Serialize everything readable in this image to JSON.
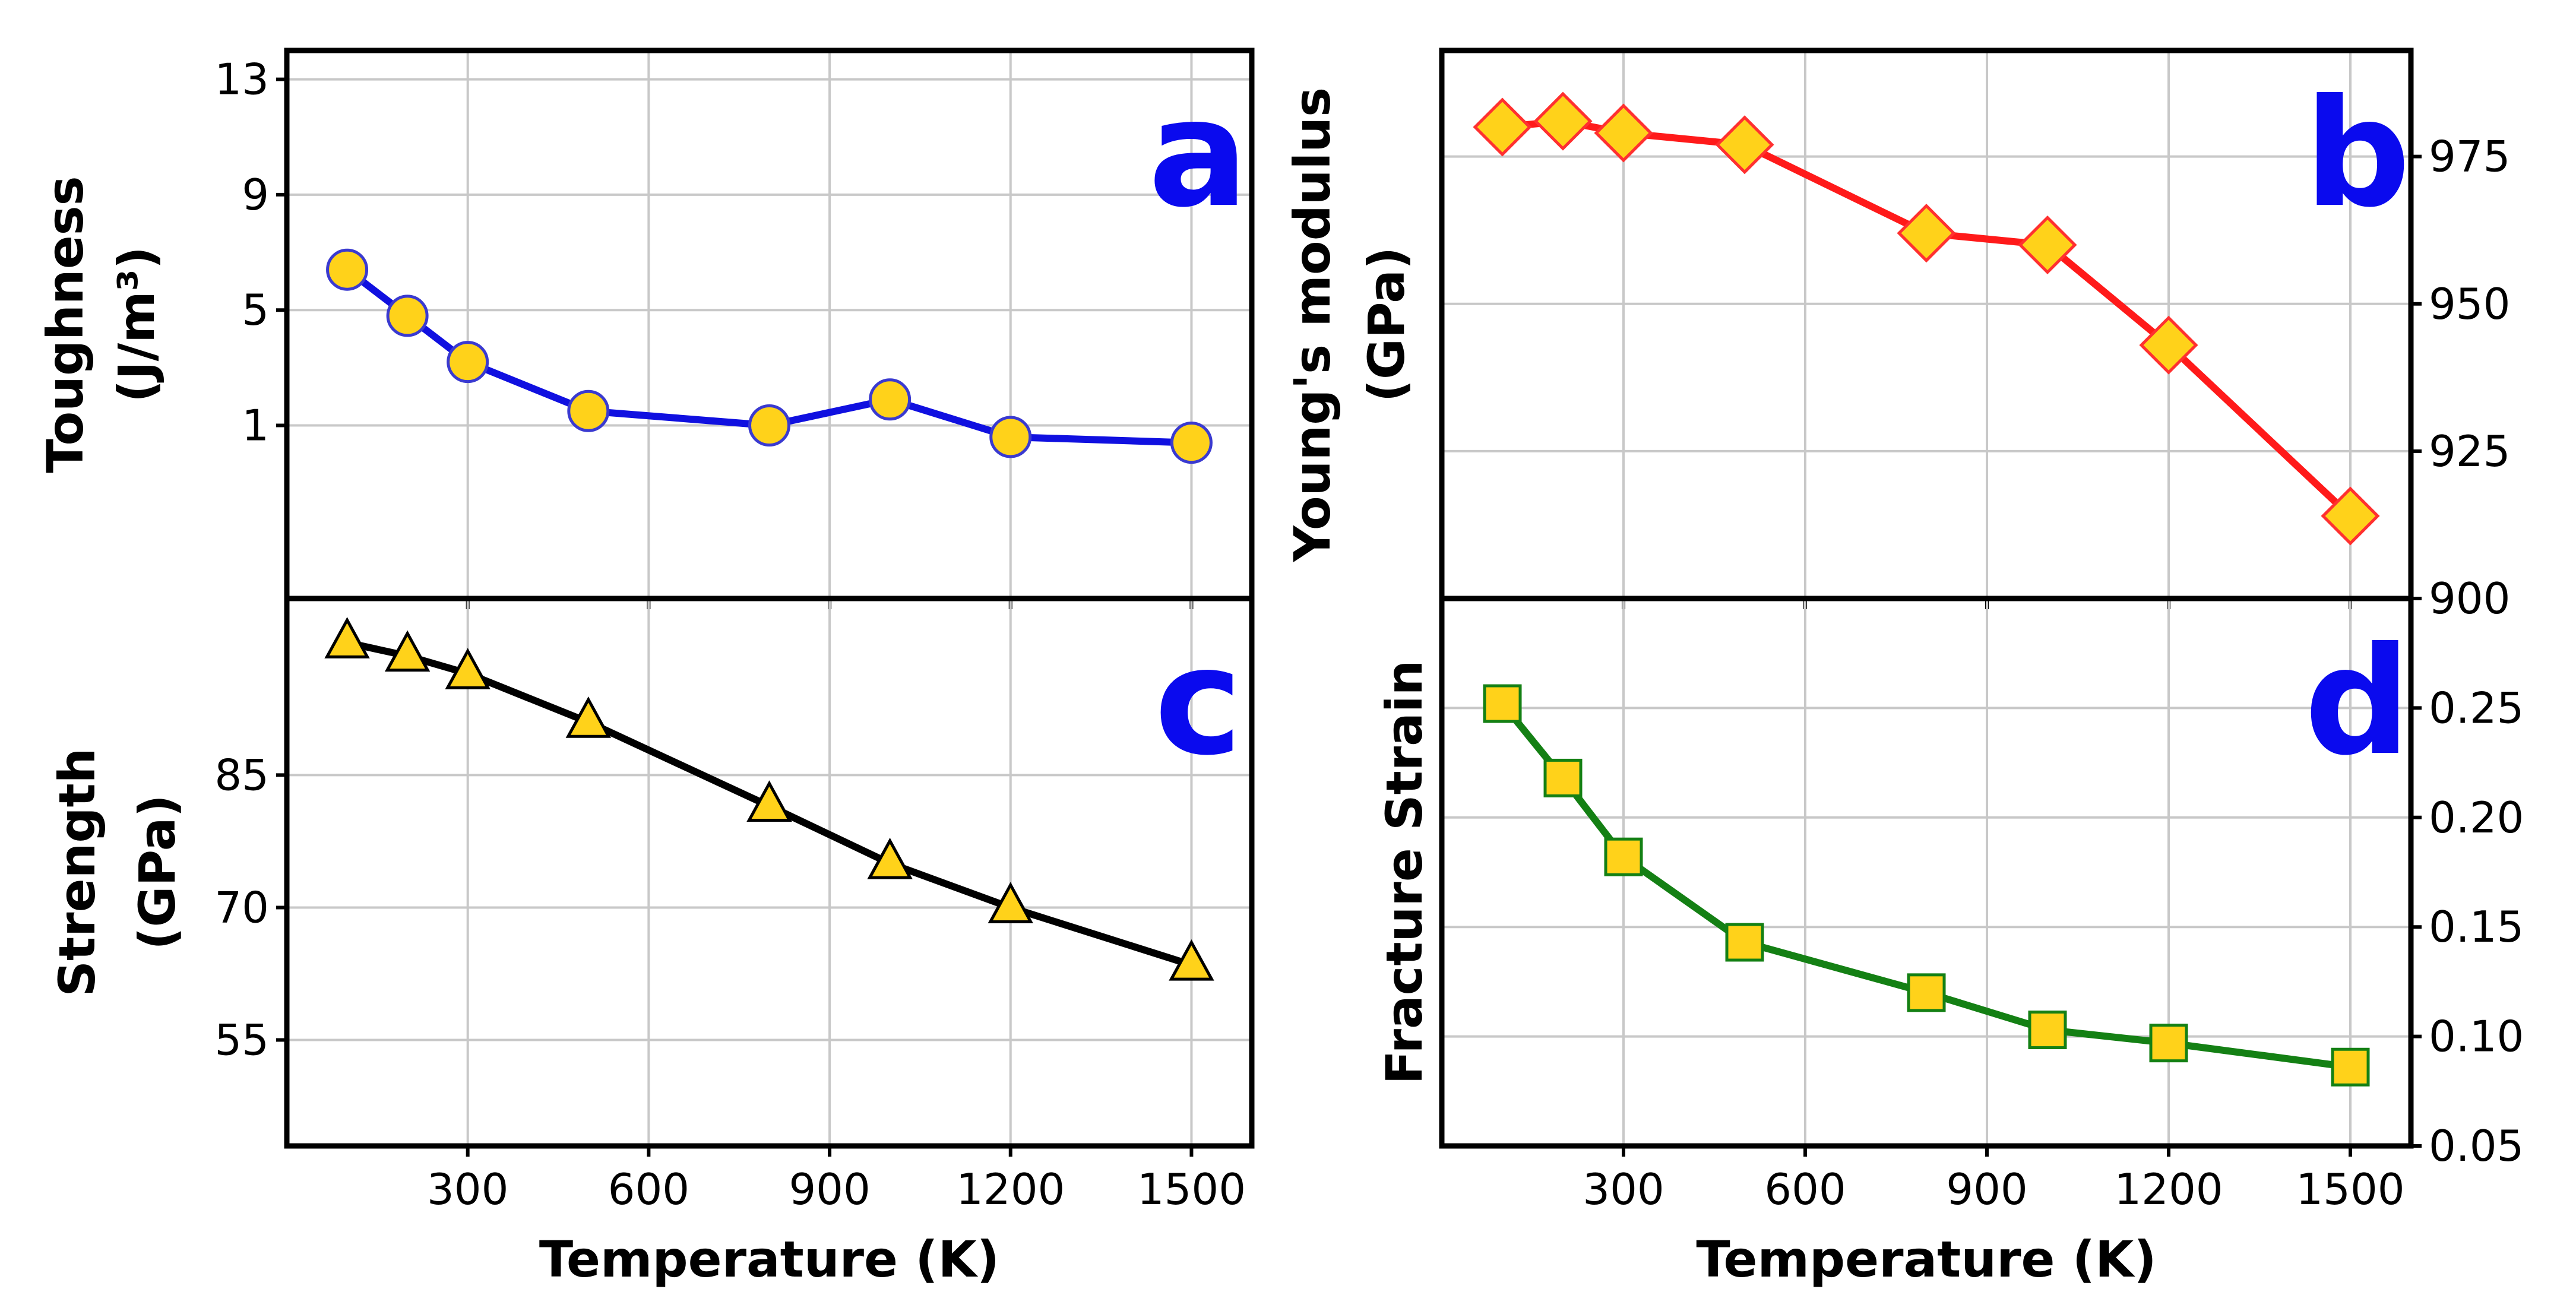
{
  "chart_data": [
    {
      "id": "a",
      "type": "line",
      "panel_label": "a",
      "label_color": "#0a0aee",
      "ylabel": [
        "Toughness",
        "(J/m³)"
      ],
      "xlabel": "",
      "xlim": [
        0,
        1600
      ],
      "ylim": [
        -5,
        14
      ],
      "yticks": [
        1,
        5,
        9,
        13
      ],
      "ytick_labels": [
        "1",
        "5",
        "9",
        "13"
      ],
      "xticks": [
        300,
        600,
        900,
        1200,
        1500
      ],
      "xtick_labels": [],
      "y_axis_side": "left",
      "marker": "circle",
      "line_color": "#1010e0",
      "marker_fill": "#ffd21a",
      "marker_edge": "#3a3ad0",
      "series": [
        {
          "name": "Toughness",
          "x": [
            100,
            200,
            300,
            500,
            800,
            1000,
            1200,
            1500
          ],
          "values": [
            6.4,
            4.8,
            3.2,
            1.5,
            1.0,
            1.9,
            0.6,
            0.4
          ]
        }
      ]
    },
    {
      "id": "b",
      "type": "line",
      "panel_label": "b",
      "label_color": "#0a0aee",
      "ylabel": [
        "Young's modulus",
        "(GPa)"
      ],
      "xlabel": "",
      "xlim": [
        0,
        1600
      ],
      "ylim": [
        900,
        993
      ],
      "yticks": [
        900,
        925,
        950,
        975
      ],
      "ytick_labels": [
        "900",
        "925",
        "950",
        "975"
      ],
      "xticks": [
        300,
        600,
        900,
        1200,
        1500
      ],
      "xtick_labels": [],
      "y_axis_side": "right",
      "marker": "diamond",
      "line_color": "#ff1a1a",
      "marker_fill": "#ffd21a",
      "marker_edge": "#ff3030",
      "series": [
        {
          "name": "Young's modulus",
          "x": [
            100,
            200,
            300,
            500,
            800,
            1000,
            1200,
            1500
          ],
          "values": [
            980,
            981,
            979,
            977,
            962,
            960,
            943,
            914
          ]
        }
      ]
    },
    {
      "id": "c",
      "type": "line",
      "panel_label": "c",
      "label_color": "#0a0aee",
      "ylabel": [
        "Strength",
        "(GPa)"
      ],
      "xlabel": "Temperature (K)",
      "xlim": [
        0,
        1600
      ],
      "ylim": [
        43,
        105
      ],
      "yticks": [
        55,
        70,
        85
      ],
      "ytick_labels": [
        "55",
        "70",
        "85"
      ],
      "xticks": [
        300,
        600,
        900,
        1200,
        1500
      ],
      "xtick_labels": [
        "300",
        "600",
        "900",
        "1200",
        "1500"
      ],
      "y_axis_side": "left",
      "marker": "triangle",
      "line_color": "#000000",
      "marker_fill": "#ffd21a",
      "marker_edge": "#000000",
      "series": [
        {
          "name": "Strength",
          "x": [
            100,
            200,
            300,
            500,
            800,
            1000,
            1200,
            1500
          ],
          "values": [
            100,
            98.5,
            96.5,
            91,
            81.5,
            75,
            70,
            63.5
          ]
        }
      ]
    },
    {
      "id": "d",
      "type": "line",
      "panel_label": "d",
      "label_color": "#0a0aee",
      "ylabel": [
        "Fracture Strain"
      ],
      "xlabel": "Temperature (K)",
      "xlim": [
        0,
        1600
      ],
      "ylim": [
        0.05,
        0.3
      ],
      "yticks": [
        0.05,
        0.1,
        0.15,
        0.2,
        0.25
      ],
      "ytick_labels": [
        "0.05",
        "0.10",
        "0.15",
        "0.20",
        "0.25"
      ],
      "xticks": [
        300,
        600,
        900,
        1200,
        1500
      ],
      "xtick_labels": [
        "300",
        "600",
        "900",
        "1200",
        "1500"
      ],
      "y_axis_side": "right",
      "marker": "square",
      "line_color": "#148014",
      "marker_fill": "#ffd21a",
      "marker_edge": "#148014",
      "series": [
        {
          "name": "Fracture Strain",
          "x": [
            100,
            200,
            300,
            500,
            800,
            1000,
            1200,
            1500
          ],
          "values": [
            0.252,
            0.218,
            0.182,
            0.143,
            0.12,
            0.103,
            0.097,
            0.086
          ]
        }
      ]
    }
  ]
}
